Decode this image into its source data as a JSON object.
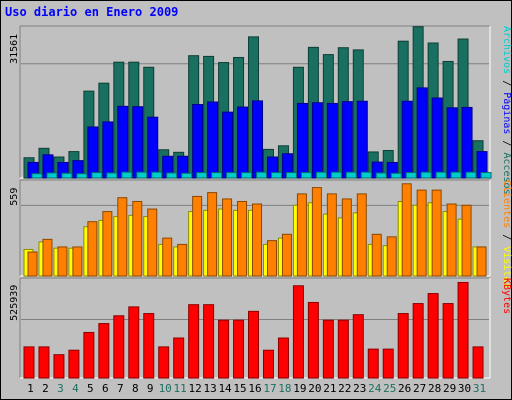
{
  "title": "Uso diario en Enero 2009",
  "chart_data": [
    {
      "type": "bar",
      "categories": [
        "1",
        "2",
        "3",
        "4",
        "5",
        "6",
        "7",
        "8",
        "9",
        "10",
        "11",
        "12",
        "13",
        "14",
        "15",
        "16",
        "17",
        "18",
        "19",
        "20",
        "21",
        "22",
        "23",
        "24",
        "25",
        "26",
        "27",
        "28",
        "29",
        "30",
        "31"
      ],
      "weekend_days": [
        "3",
        "4",
        "10",
        "11",
        "17",
        "18",
        "24",
        "25",
        "31"
      ],
      "series": [
        {
          "name": "Accesos",
          "color": "#1a7060",
          "values": [
            5600,
            8200,
            5800,
            7300,
            24000,
            26200,
            32000,
            32000,
            30600,
            7800,
            7100,
            33800,
            33600,
            31900,
            33300,
            39000,
            7900,
            8900,
            30600,
            36100,
            34100,
            36000,
            35400,
            7200,
            7600,
            37800,
            41800,
            37300,
            32200,
            38400,
            10300
          ]
        },
        {
          "name": "Páginas",
          "color": "#0000ff",
          "values": [
            4300,
            6400,
            4300,
            4800,
            14100,
            15500,
            19800,
            19700,
            16800,
            6000,
            6000,
            20300,
            21000,
            18200,
            19600,
            21300,
            5800,
            6700,
            20600,
            20800,
            20600,
            21100,
            21200,
            4400,
            4300,
            21200,
            24900,
            22100,
            19400,
            19500,
            7300
          ]
        },
        {
          "name": "Archivos",
          "color": "#00cccc",
          "values": [
            1200,
            1400,
            1300,
            1200,
            1500,
            1400,
            1600,
            1600,
            1600,
            1400,
            1300,
            1500,
            1500,
            1500,
            1500,
            1600,
            1500,
            1500,
            1500,
            1600,
            1600,
            1600,
            1600,
            1400,
            1300,
            1500,
            1600,
            1600,
            1600,
            1600,
            1500
          ]
        }
      ],
      "ymax_label": "31561",
      "legend": "right-vertical"
    },
    {
      "type": "bar",
      "categories": [
        "1",
        "2",
        "3",
        "4",
        "5",
        "6",
        "7",
        "8",
        "9",
        "10",
        "11",
        "12",
        "13",
        "14",
        "15",
        "16",
        "17",
        "18",
        "19",
        "20",
        "21",
        "22",
        "23",
        "24",
        "25",
        "26",
        "27",
        "28",
        "29",
        "30",
        "31"
      ],
      "series": [
        {
          "name": "Visitas",
          "color": "#ffff00",
          "values": [
            210,
            270,
            220,
            220,
            390,
            440,
            470,
            480,
            470,
            250,
            230,
            510,
            520,
            530,
            520,
            520,
            250,
            300,
            560,
            580,
            490,
            460,
            500,
            250,
            240,
            590,
            560,
            580,
            510,
            450,
            230
          ]
        },
        {
          "name": "Clientes",
          "color": "#ff8000",
          "values": [
            190,
            290,
            230,
            230,
            430,
            510,
            620,
            590,
            530,
            300,
            250,
            630,
            660,
            610,
            590,
            570,
            280,
            330,
            650,
            700,
            650,
            610,
            650,
            330,
            310,
            730,
            680,
            680,
            570,
            560,
            230
          ]
        }
      ],
      "ymax_label": "559",
      "legend": "right-vertical"
    },
    {
      "type": "bar",
      "categories": [
        "1",
        "2",
        "3",
        "4",
        "5",
        "6",
        "7",
        "8",
        "9",
        "10",
        "11",
        "12",
        "13",
        "14",
        "15",
        "16",
        "17",
        "18",
        "19",
        "20",
        "21",
        "22",
        "23",
        "24",
        "25",
        "26",
        "27",
        "28",
        "29",
        "30",
        "31"
      ],
      "series": [
        {
          "name": "KBytes",
          "color": "#ff0000",
          "values": [
            280000,
            280000,
            210000,
            250000,
            410000,
            490000,
            560000,
            640000,
            580000,
            280000,
            360000,
            660000,
            660000,
            520000,
            520000,
            600000,
            250000,
            360000,
            830000,
            680000,
            520000,
            520000,
            570000,
            260000,
            260000,
            580000,
            670000,
            760000,
            670000,
            860000,
            280000
          ]
        }
      ],
      "ymax_label": "525939",
      "legend": "right-vertical"
    }
  ]
}
